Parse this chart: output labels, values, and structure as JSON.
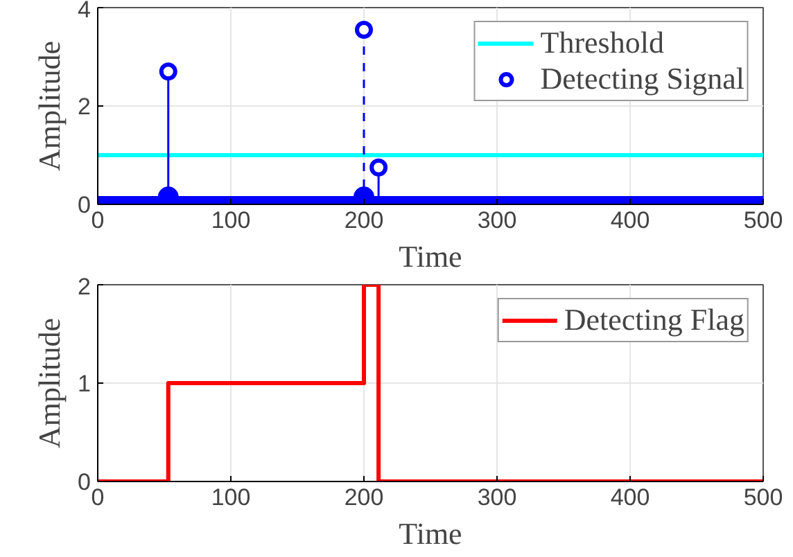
{
  "chart_data": [
    {
      "type": "lollipop",
      "xlabel": "Time",
      "ylabel": "Amplitude",
      "xlim": [
        0,
        500
      ],
      "ylim": [
        0,
        4
      ],
      "xticks": [
        0,
        100,
        200,
        300,
        400,
        500
      ],
      "yticks": [
        0,
        2,
        4
      ],
      "grid": true,
      "legend": "top right",
      "series": [
        {
          "name": "Threshold",
          "type": "line",
          "color": "#00ffff",
          "x": [
            0,
            500
          ],
          "values": [
            1,
            1
          ]
        },
        {
          "name": "Detecting Signal",
          "type": "lollipop",
          "color": "#0000ff",
          "marker": "circle",
          "x": [
            53,
            211
          ],
          "values": [
            2.7,
            0.75
          ]
        },
        {
          "type": "lollipop",
          "color": "#0000ff",
          "marker": "circle",
          "line_style": "dashed",
          "x": [
            200
          ],
          "values": [
            3.55
          ]
        },
        {
          "type": "line",
          "color": "#0000ff",
          "x": [
            0,
            500
          ],
          "values": [
            0,
            0
          ]
        },
        {
          "type": "scatter",
          "color": "#0000ff",
          "marker": "circle",
          "x": [
            53,
            200
          ],
          "values": [
            0.15,
            0.15
          ]
        }
      ]
    },
    {
      "type": "step",
      "xlabel": "Time",
      "ylabel": "Amplitude",
      "xlim": [
        0,
        500
      ],
      "ylim": [
        0,
        2
      ],
      "xticks": [
        0,
        100,
        200,
        300,
        400,
        500
      ],
      "yticks": [
        0,
        1,
        2
      ],
      "grid": true,
      "legend": "top right",
      "series": [
        {
          "name": "Detecting Flag",
          "color": "#ff0000",
          "x": [
            0,
            53,
            200,
            211,
            500
          ],
          "values": [
            0,
            1,
            2,
            0,
            0
          ]
        }
      ]
    }
  ]
}
